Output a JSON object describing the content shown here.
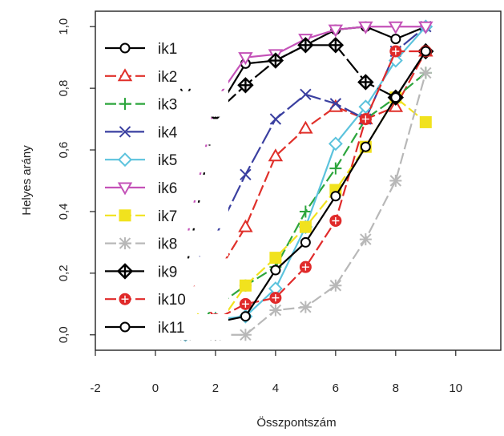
{
  "chart_data": {
    "type": "line",
    "title": "",
    "xlabel": "Összpontszám",
    "ylabel": "Helyes arány",
    "xlim": [
      -2,
      11.5
    ],
    "ylim": [
      -0.05,
      1.05
    ],
    "x_ticks": [
      -2,
      0,
      2,
      4,
      6,
      8,
      10
    ],
    "x_tick_labels": [
      "-2",
      "0",
      "2",
      "4",
      "6",
      "8",
      "10"
    ],
    "y_ticks": [
      0,
      0.2,
      0.4,
      0.6,
      0.8,
      1.0
    ],
    "y_tick_labels": [
      "0,0",
      "0,2",
      "0,4",
      "0,6",
      "0,8",
      "1,0"
    ],
    "grid": false,
    "legend_position": "top-left",
    "series": [
      {
        "name": "ik1",
        "color": "#000000",
        "marker": "circle",
        "dash": "0",
        "x": [
          1,
          2,
          3,
          4,
          5,
          6,
          7,
          8,
          9
        ],
        "y": [
          0.8,
          0.72,
          0.88,
          0.89,
          0.94,
          0.99,
          1.0,
          0.96,
          1.0
        ]
      },
      {
        "name": "ik2",
        "color": "#e0302a",
        "marker": "triangle",
        "dash": "14,5",
        "x": [
          1,
          2,
          3,
          4,
          5,
          6,
          7,
          8,
          9
        ],
        "y": [
          0.2,
          0.19,
          0.35,
          0.58,
          0.67,
          0.74,
          0.7,
          0.74,
          0.92
        ]
      },
      {
        "name": "ik3",
        "color": "#2ca53c",
        "marker": "plus",
        "dash": "14,5",
        "x": [
          1,
          2,
          3,
          4,
          5,
          6,
          7,
          8,
          9
        ],
        "y": [
          0.0,
          0.09,
          0.16,
          0.22,
          0.4,
          0.54,
          0.7,
          0.77,
          0.85
        ]
      },
      {
        "name": "ik4",
        "color": "#3a3fa0",
        "marker": "cross",
        "dash": "22,5",
        "x": [
          1,
          2,
          3,
          4,
          5,
          6,
          7,
          8,
          9
        ],
        "y": [
          0.2,
          0.32,
          0.52,
          0.7,
          0.78,
          0.75,
          0.7,
          0.92,
          1.0
        ]
      },
      {
        "name": "ik5",
        "color": "#5cc3dd",
        "marker": "diamond",
        "dash": "0",
        "x": [
          1,
          2,
          3,
          4,
          5,
          6,
          7,
          8,
          9
        ],
        "y": [
          0.0,
          0.05,
          0.06,
          0.15,
          0.35,
          0.62,
          0.74,
          0.89,
          1.0
        ]
      },
      {
        "name": "ik6",
        "color": "#c452b8",
        "marker": "triangle-down",
        "dash": "0",
        "x": [
          1,
          2,
          3,
          4,
          5,
          6,
          7,
          8,
          9
        ],
        "y": [
          0.29,
          0.76,
          0.9,
          0.91,
          0.96,
          0.99,
          1.0,
          1.0,
          1.0
        ]
      },
      {
        "name": "ik7",
        "color": "#f1e21e",
        "marker": "square",
        "dash": "14,5",
        "x": [
          1,
          2,
          3,
          4,
          5,
          6,
          7,
          8,
          9
        ],
        "y": [
          0.1,
          0.02,
          0.16,
          0.25,
          0.35,
          0.47,
          0.61,
          0.77,
          0.69
        ]
      },
      {
        "name": "ik8",
        "color": "#b8b8b8",
        "marker": "asterisk",
        "dash": "14,5",
        "x": [
          1,
          2,
          3,
          4,
          5,
          6,
          7,
          8,
          9
        ],
        "y": [
          0.0,
          0.0,
          0.0,
          0.08,
          0.09,
          0.16,
          0.31,
          0.5,
          0.85
        ]
      },
      {
        "name": "ik9",
        "color": "#000000",
        "marker": "diamond-plus",
        "dash": "22,5",
        "x": [
          1,
          2,
          3,
          4,
          5,
          6,
          7,
          8,
          9
        ],
        "y": [
          0.2,
          0.72,
          0.81,
          0.89,
          0.94,
          0.94,
          0.82,
          0.77,
          0.92
        ]
      },
      {
        "name": "ik10",
        "color": "#e02a2a",
        "marker": "circle-plus",
        "dash": "14,5",
        "x": [
          1,
          2,
          3,
          4,
          5,
          6,
          7,
          8,
          9
        ],
        "y": [
          0.2,
          0.05,
          0.1,
          0.12,
          0.22,
          0.37,
          0.7,
          0.92,
          0.92
        ]
      },
      {
        "name": "ik11",
        "color": "#000000",
        "marker": "circle",
        "dash": "0",
        "x": [
          1,
          2,
          3,
          4,
          5,
          6,
          7,
          8,
          9
        ],
        "y": [
          0.0,
          0.04,
          0.06,
          0.21,
          0.3,
          0.45,
          0.61,
          0.77,
          0.92
        ]
      }
    ]
  }
}
